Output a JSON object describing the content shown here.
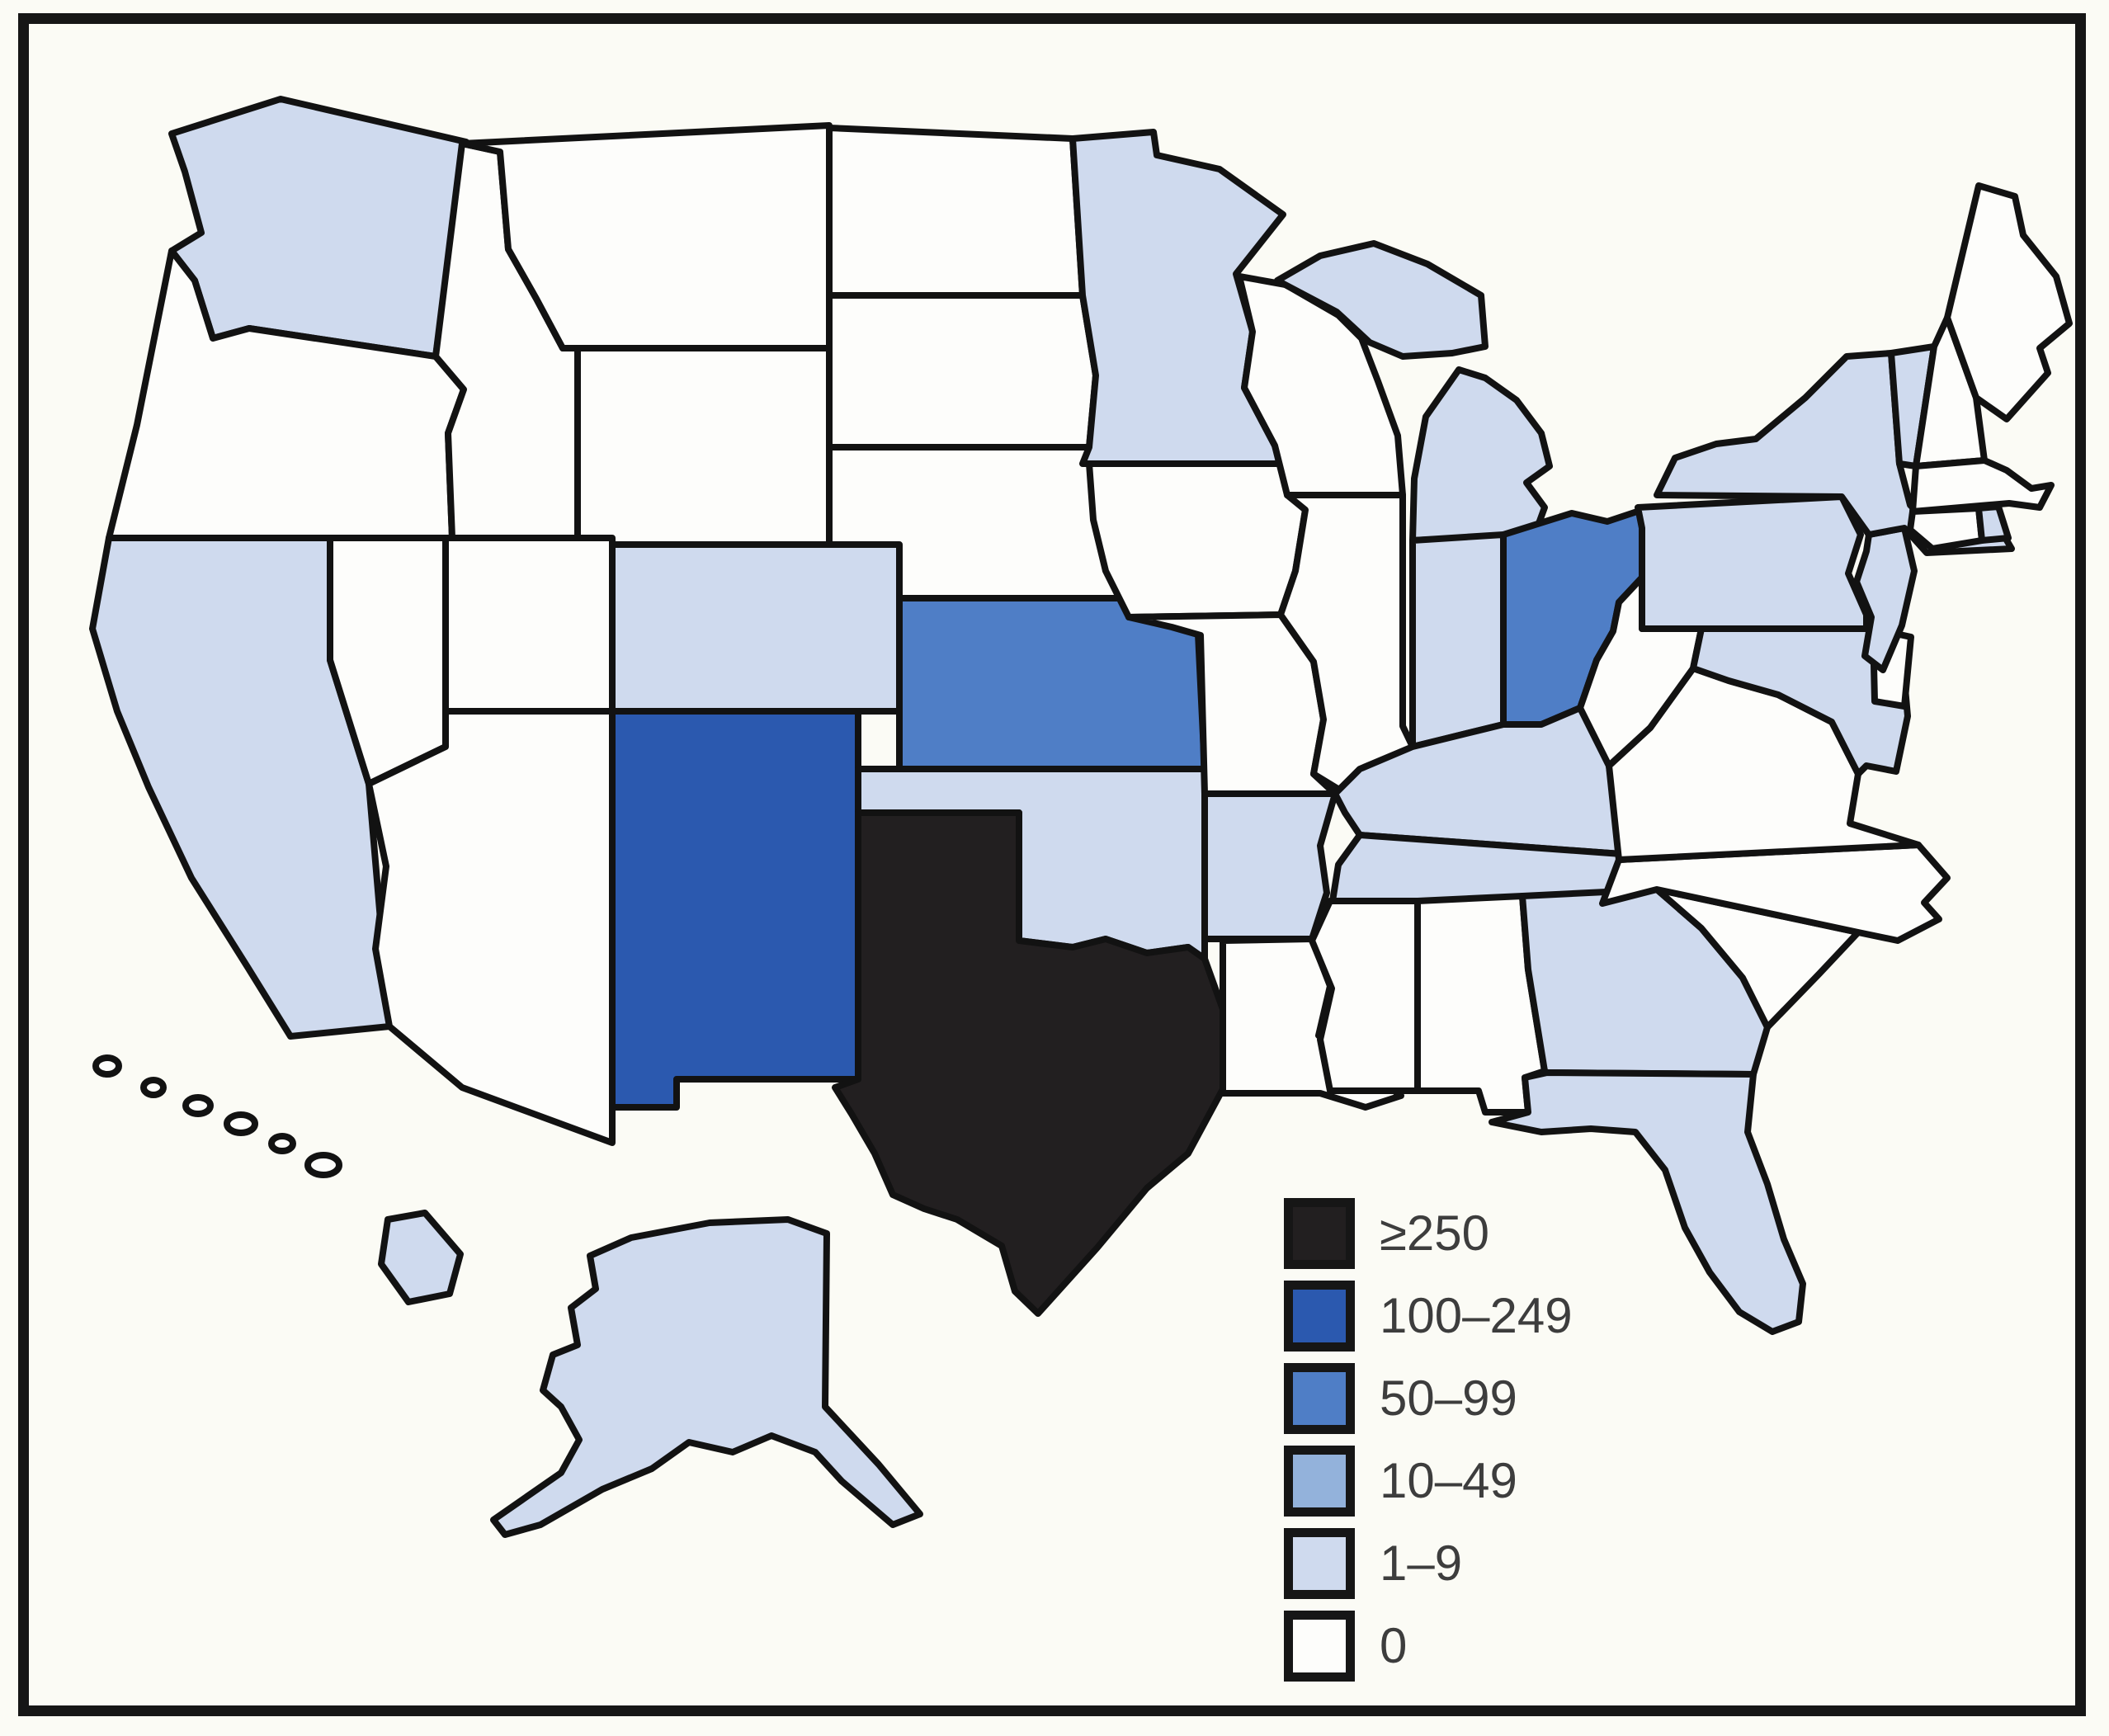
{
  "figure": {
    "description": "Choropleth map of the United States showing number of reported cases by state",
    "background_color": "#fbfbf5",
    "border_color": "#161616",
    "state_outline_color": "#121212"
  },
  "colors": {
    "ge250": "#221f20",
    "c100_249": "#2b59af",
    "c50_99": "#4f7ec6",
    "c10_49": "#93b2db",
    "c1_9": "#cfdaee",
    "c0": "#fdfdfb"
  },
  "legend": {
    "items": [
      {
        "label": "≥250",
        "key": "ge250"
      },
      {
        "label": "100–249",
        "key": "c100_249"
      },
      {
        "label": "50–99",
        "key": "c50_99"
      },
      {
        "label": "10–49",
        "key": "c10_49"
      },
      {
        "label": "1–9",
        "key": "c1_9"
      },
      {
        "label": "0",
        "key": "c0"
      }
    ]
  },
  "chart_data": {
    "type": "heatmap",
    "subtype": "us-state-choropleth",
    "legend_categories": [
      "≥250",
      "100–249",
      "50–99",
      "10–49",
      "1–9",
      "0"
    ],
    "legend_colors": [
      "#221f20",
      "#2b59af",
      "#4f7ec6",
      "#93b2db",
      "#cfdaee",
      "#fdfdfb"
    ],
    "states_by_category": {
      "≥250": [
        "TX"
      ],
      "100–249": [
        "NM"
      ],
      "50–99": [
        "KS",
        "OH"
      ],
      "10–49": [],
      "1–9": [
        "WA",
        "CA",
        "CO",
        "OK",
        "MN",
        "MI",
        "IN",
        "KY",
        "TN",
        "AR",
        "GA",
        "FL",
        "NY",
        "PA",
        "NJ",
        "MD",
        "VT",
        "RI",
        "AK",
        "HI"
      ],
      "0": [
        "OR",
        "NV",
        "ID",
        "MT",
        "WY",
        "UT",
        "AZ",
        "ND",
        "SD",
        "NE",
        "IA",
        "MO",
        "WI",
        "IL",
        "LA",
        "MS",
        "AL",
        "SC",
        "NC",
        "VA",
        "WV",
        "DE",
        "CT",
        "MA",
        "NH",
        "ME"
      ]
    }
  },
  "states": [
    {
      "id": "WA",
      "name": "Washington",
      "category": "c1_9"
    },
    {
      "id": "OR",
      "name": "Oregon",
      "category": "c0"
    },
    {
      "id": "CA",
      "name": "California",
      "category": "c1_9"
    },
    {
      "id": "NV",
      "name": "Nevada",
      "category": "c0"
    },
    {
      "id": "ID",
      "name": "Idaho",
      "category": "c0"
    },
    {
      "id": "MT",
      "name": "Montana",
      "category": "c0"
    },
    {
      "id": "WY",
      "name": "Wyoming",
      "category": "c0"
    },
    {
      "id": "UT",
      "name": "Utah",
      "category": "c0"
    },
    {
      "id": "CO",
      "name": "Colorado",
      "category": "c1_9"
    },
    {
      "id": "AZ",
      "name": "Arizona",
      "category": "c0"
    },
    {
      "id": "NM",
      "name": "New Mexico",
      "category": "c100_249"
    },
    {
      "id": "ND",
      "name": "North Dakota",
      "category": "c0"
    },
    {
      "id": "SD",
      "name": "South Dakota",
      "category": "c0"
    },
    {
      "id": "NE",
      "name": "Nebraska",
      "category": "c0"
    },
    {
      "id": "KS",
      "name": "Kansas",
      "category": "c50_99"
    },
    {
      "id": "OK",
      "name": "Oklahoma",
      "category": "c1_9"
    },
    {
      "id": "TX",
      "name": "Texas",
      "category": "ge250"
    },
    {
      "id": "MN",
      "name": "Minnesota",
      "category": "c1_9"
    },
    {
      "id": "IA",
      "name": "Iowa",
      "category": "c0"
    },
    {
      "id": "MO",
      "name": "Missouri",
      "category": "c0"
    },
    {
      "id": "AR",
      "name": "Arkansas",
      "category": "c1_9"
    },
    {
      "id": "LA",
      "name": "Louisiana",
      "category": "c0"
    },
    {
      "id": "WI",
      "name": "Wisconsin",
      "category": "c0"
    },
    {
      "id": "IL",
      "name": "Illinois",
      "category": "c0"
    },
    {
      "id": "MI",
      "name": "Michigan",
      "category": "c1_9"
    },
    {
      "id": "IN",
      "name": "Indiana",
      "category": "c1_9"
    },
    {
      "id": "OH",
      "name": "Ohio",
      "category": "c50_99"
    },
    {
      "id": "KY",
      "name": "Kentucky",
      "category": "c1_9"
    },
    {
      "id": "TN",
      "name": "Tennessee",
      "category": "c1_9"
    },
    {
      "id": "MS",
      "name": "Mississippi",
      "category": "c0"
    },
    {
      "id": "AL",
      "name": "Alabama",
      "category": "c0"
    },
    {
      "id": "GA",
      "name": "Georgia",
      "category": "c1_9"
    },
    {
      "id": "FL",
      "name": "Florida",
      "category": "c1_9"
    },
    {
      "id": "SC",
      "name": "South Carolina",
      "category": "c0"
    },
    {
      "id": "NC",
      "name": "North Carolina",
      "category": "c0"
    },
    {
      "id": "VA",
      "name": "Virginia",
      "category": "c0"
    },
    {
      "id": "WV",
      "name": "West Virginia",
      "category": "c0"
    },
    {
      "id": "MD",
      "name": "Maryland",
      "category": "c1_9"
    },
    {
      "id": "DE",
      "name": "Delaware",
      "category": "c0"
    },
    {
      "id": "PA",
      "name": "Pennsylvania",
      "category": "c1_9"
    },
    {
      "id": "NJ",
      "name": "New Jersey",
      "category": "c1_9"
    },
    {
      "id": "NY",
      "name": "New York",
      "category": "c1_9"
    },
    {
      "id": "VT",
      "name": "Vermont",
      "category": "c1_9"
    },
    {
      "id": "NH",
      "name": "New Hampshire",
      "category": "c0"
    },
    {
      "id": "ME",
      "name": "Maine",
      "category": "c0"
    },
    {
      "id": "MA",
      "name": "Massachusetts",
      "category": "c0"
    },
    {
      "id": "CT",
      "name": "Connecticut",
      "category": "c0"
    },
    {
      "id": "RI",
      "name": "Rhode Island",
      "category": "c1_9"
    },
    {
      "id": "AK",
      "name": "Alaska",
      "category": "c1_9"
    },
    {
      "id": "HI",
      "name": "Hawaii",
      "category": "c1_9"
    }
  ]
}
